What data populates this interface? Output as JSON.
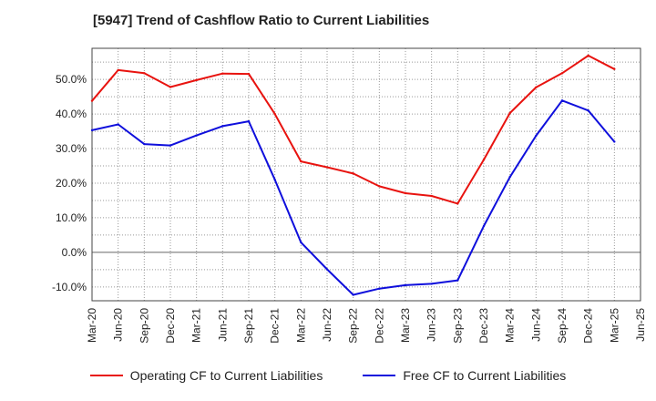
{
  "chart_data": {
    "type": "line",
    "title": "[5947]  Trend of Cashflow Ratio to Current Liabilities",
    "categories": [
      "Mar-20",
      "Jun-20",
      "Sep-20",
      "Dec-20",
      "Mar-21",
      "Jun-21",
      "Sep-21",
      "Dec-21",
      "Mar-22",
      "Jun-22",
      "Sep-22",
      "Dec-22",
      "Mar-23",
      "Jun-23",
      "Sep-23",
      "Dec-23",
      "Mar-24",
      "Jun-24",
      "Sep-24",
      "Dec-24",
      "Mar-25",
      "Jun-25"
    ],
    "y_ticks": [
      "-10.0%",
      "0.0%",
      "10.0%",
      "20.0%",
      "30.0%",
      "40.0%",
      "50.0%"
    ],
    "y_tick_values": [
      -10,
      0,
      10,
      20,
      30,
      40,
      50
    ],
    "ylim": [
      -14,
      59
    ],
    "grid": true,
    "legend_position": "bottom",
    "series": [
      {
        "name": "Operating CF to Current Liabilities",
        "color": "#e8130f",
        "values": [
          43.8,
          52.7,
          51.8,
          47.8,
          49.8,
          51.7,
          51.6,
          40.0,
          26.3,
          24.6,
          22.8,
          19.1,
          17.1,
          16.3,
          14.1,
          26.8,
          40.3,
          47.7,
          51.8,
          56.9,
          53.0,
          null
        ]
      },
      {
        "name": "Free CF to Current Liabilities",
        "color": "#0f0fdc",
        "values": [
          35.3,
          37.0,
          31.3,
          30.9,
          33.8,
          36.5,
          37.9,
          21.0,
          2.9,
          -4.9,
          -12.3,
          -10.5,
          -9.5,
          -9.1,
          -8.1,
          7.6,
          21.8,
          33.7,
          43.9,
          41.0,
          32.0,
          null
        ]
      }
    ]
  }
}
